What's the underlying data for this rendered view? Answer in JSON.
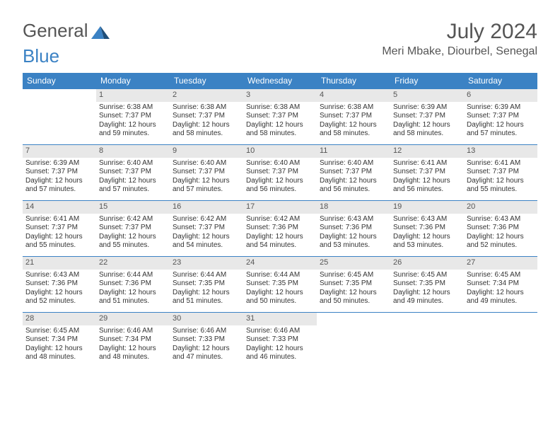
{
  "logo": {
    "text1": "General",
    "text2": "Blue"
  },
  "title": "July 2024",
  "location": "Meri Mbake, Diourbel, Senegal",
  "colors": {
    "header_bg": "#3b82c4",
    "header_text": "#ffffff",
    "daynum_bg": "#e8e8e8",
    "border": "#3b82c4",
    "text": "#333333"
  },
  "day_names": [
    "Sunday",
    "Monday",
    "Tuesday",
    "Wednesday",
    "Thursday",
    "Friday",
    "Saturday"
  ],
  "weeks": [
    [
      {
        "num": "",
        "sunrise": "",
        "sunset": "",
        "daylight": ""
      },
      {
        "num": "1",
        "sunrise": "Sunrise: 6:38 AM",
        "sunset": "Sunset: 7:37 PM",
        "daylight": "Daylight: 12 hours and 59 minutes."
      },
      {
        "num": "2",
        "sunrise": "Sunrise: 6:38 AM",
        "sunset": "Sunset: 7:37 PM",
        "daylight": "Daylight: 12 hours and 58 minutes."
      },
      {
        "num": "3",
        "sunrise": "Sunrise: 6:38 AM",
        "sunset": "Sunset: 7:37 PM",
        "daylight": "Daylight: 12 hours and 58 minutes."
      },
      {
        "num": "4",
        "sunrise": "Sunrise: 6:38 AM",
        "sunset": "Sunset: 7:37 PM",
        "daylight": "Daylight: 12 hours and 58 minutes."
      },
      {
        "num": "5",
        "sunrise": "Sunrise: 6:39 AM",
        "sunset": "Sunset: 7:37 PM",
        "daylight": "Daylight: 12 hours and 58 minutes."
      },
      {
        "num": "6",
        "sunrise": "Sunrise: 6:39 AM",
        "sunset": "Sunset: 7:37 PM",
        "daylight": "Daylight: 12 hours and 57 minutes."
      }
    ],
    [
      {
        "num": "7",
        "sunrise": "Sunrise: 6:39 AM",
        "sunset": "Sunset: 7:37 PM",
        "daylight": "Daylight: 12 hours and 57 minutes."
      },
      {
        "num": "8",
        "sunrise": "Sunrise: 6:40 AM",
        "sunset": "Sunset: 7:37 PM",
        "daylight": "Daylight: 12 hours and 57 minutes."
      },
      {
        "num": "9",
        "sunrise": "Sunrise: 6:40 AM",
        "sunset": "Sunset: 7:37 PM",
        "daylight": "Daylight: 12 hours and 57 minutes."
      },
      {
        "num": "10",
        "sunrise": "Sunrise: 6:40 AM",
        "sunset": "Sunset: 7:37 PM",
        "daylight": "Daylight: 12 hours and 56 minutes."
      },
      {
        "num": "11",
        "sunrise": "Sunrise: 6:40 AM",
        "sunset": "Sunset: 7:37 PM",
        "daylight": "Daylight: 12 hours and 56 minutes."
      },
      {
        "num": "12",
        "sunrise": "Sunrise: 6:41 AM",
        "sunset": "Sunset: 7:37 PM",
        "daylight": "Daylight: 12 hours and 56 minutes."
      },
      {
        "num": "13",
        "sunrise": "Sunrise: 6:41 AM",
        "sunset": "Sunset: 7:37 PM",
        "daylight": "Daylight: 12 hours and 55 minutes."
      }
    ],
    [
      {
        "num": "14",
        "sunrise": "Sunrise: 6:41 AM",
        "sunset": "Sunset: 7:37 PM",
        "daylight": "Daylight: 12 hours and 55 minutes."
      },
      {
        "num": "15",
        "sunrise": "Sunrise: 6:42 AM",
        "sunset": "Sunset: 7:37 PM",
        "daylight": "Daylight: 12 hours and 55 minutes."
      },
      {
        "num": "16",
        "sunrise": "Sunrise: 6:42 AM",
        "sunset": "Sunset: 7:37 PM",
        "daylight": "Daylight: 12 hours and 54 minutes."
      },
      {
        "num": "17",
        "sunrise": "Sunrise: 6:42 AM",
        "sunset": "Sunset: 7:36 PM",
        "daylight": "Daylight: 12 hours and 54 minutes."
      },
      {
        "num": "18",
        "sunrise": "Sunrise: 6:43 AM",
        "sunset": "Sunset: 7:36 PM",
        "daylight": "Daylight: 12 hours and 53 minutes."
      },
      {
        "num": "19",
        "sunrise": "Sunrise: 6:43 AM",
        "sunset": "Sunset: 7:36 PM",
        "daylight": "Daylight: 12 hours and 53 minutes."
      },
      {
        "num": "20",
        "sunrise": "Sunrise: 6:43 AM",
        "sunset": "Sunset: 7:36 PM",
        "daylight": "Daylight: 12 hours and 52 minutes."
      }
    ],
    [
      {
        "num": "21",
        "sunrise": "Sunrise: 6:43 AM",
        "sunset": "Sunset: 7:36 PM",
        "daylight": "Daylight: 12 hours and 52 minutes."
      },
      {
        "num": "22",
        "sunrise": "Sunrise: 6:44 AM",
        "sunset": "Sunset: 7:36 PM",
        "daylight": "Daylight: 12 hours and 51 minutes."
      },
      {
        "num": "23",
        "sunrise": "Sunrise: 6:44 AM",
        "sunset": "Sunset: 7:35 PM",
        "daylight": "Daylight: 12 hours and 51 minutes."
      },
      {
        "num": "24",
        "sunrise": "Sunrise: 6:44 AM",
        "sunset": "Sunset: 7:35 PM",
        "daylight": "Daylight: 12 hours and 50 minutes."
      },
      {
        "num": "25",
        "sunrise": "Sunrise: 6:45 AM",
        "sunset": "Sunset: 7:35 PM",
        "daylight": "Daylight: 12 hours and 50 minutes."
      },
      {
        "num": "26",
        "sunrise": "Sunrise: 6:45 AM",
        "sunset": "Sunset: 7:35 PM",
        "daylight": "Daylight: 12 hours and 49 minutes."
      },
      {
        "num": "27",
        "sunrise": "Sunrise: 6:45 AM",
        "sunset": "Sunset: 7:34 PM",
        "daylight": "Daylight: 12 hours and 49 minutes."
      }
    ],
    [
      {
        "num": "28",
        "sunrise": "Sunrise: 6:45 AM",
        "sunset": "Sunset: 7:34 PM",
        "daylight": "Daylight: 12 hours and 48 minutes."
      },
      {
        "num": "29",
        "sunrise": "Sunrise: 6:46 AM",
        "sunset": "Sunset: 7:34 PM",
        "daylight": "Daylight: 12 hours and 48 minutes."
      },
      {
        "num": "30",
        "sunrise": "Sunrise: 6:46 AM",
        "sunset": "Sunset: 7:33 PM",
        "daylight": "Daylight: 12 hours and 47 minutes."
      },
      {
        "num": "31",
        "sunrise": "Sunrise: 6:46 AM",
        "sunset": "Sunset: 7:33 PM",
        "daylight": "Daylight: 12 hours and 46 minutes."
      },
      {
        "num": "",
        "sunrise": "",
        "sunset": "",
        "daylight": ""
      },
      {
        "num": "",
        "sunrise": "",
        "sunset": "",
        "daylight": ""
      },
      {
        "num": "",
        "sunrise": "",
        "sunset": "",
        "daylight": ""
      }
    ]
  ]
}
